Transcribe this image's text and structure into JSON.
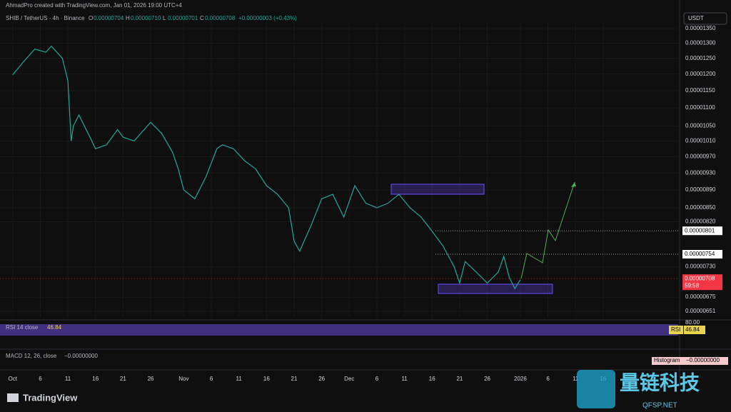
{
  "header": {
    "credit": "AhmadPro created with TradingView.com, Jan 01, 2026 19:00 UTC+4",
    "symbol": "SHIB / TetherUS · 4h · Binance",
    "ohlc": [
      {
        "key": "O",
        "value": "0.00000704"
      },
      {
        "key": "H",
        "value": "0.00000710"
      },
      {
        "key": "L",
        "value": "0.00000701"
      },
      {
        "key": "C",
        "value": "0.00000708"
      }
    ],
    "change": "+0.00000003 (+0.43%)",
    "currency": "USDT"
  },
  "chart_data": {
    "type": "line",
    "log_scale": true,
    "color": "#26a69a",
    "grid": true,
    "x": [
      0,
      2,
      4,
      6,
      7,
      9,
      10,
      10.6,
      11,
      12,
      14,
      15,
      17,
      19,
      20,
      22,
      25,
      27,
      29,
      30,
      31,
      33,
      35,
      37,
      38,
      40,
      42,
      44,
      46,
      48,
      50,
      51,
      52,
      54,
      56,
      58,
      60,
      62,
      64,
      66,
      68,
      70,
      72,
      74,
      76,
      78,
      80,
      81,
      82,
      84,
      86,
      88,
      89,
      90,
      91,
      92
    ],
    "values": [
      1.198e-05,
      1.24e-05,
      1.28e-05,
      1.27e-05,
      1.29e-05,
      1.25e-05,
      1.18e-05,
      1.01e-05,
      1.05e-05,
      1.08e-05,
      1.02e-05,
      9.9e-06,
      1e-05,
      1.04e-05,
      1.02e-05,
      1.01e-05,
      1.06e-05,
      1.03e-05,
      9.8e-06,
      9.4e-06,
      8.9e-06,
      8.7e-06,
      9.2e-06,
      9.9e-06,
      1e-05,
      9.9e-06,
      9.6e-06,
      9.4e-06,
      9e-06,
      8.8e-06,
      8.5e-06,
      7.8e-06,
      7.6e-06,
      8.1e-06,
      8.7e-06,
      8.8e-06,
      8.3e-06,
      9e-06,
      8.6e-06,
      8.5e-06,
      8.6e-06,
      8.8e-06,
      8.5e-06,
      8.3e-06,
      8e-06,
      7.7e-06,
      7.3e-06,
      7e-06,
      7.4e-06,
      7.2e-06,
      7e-06,
      7.2e-06,
      7.5e-06,
      7.1e-06,
      6.9e-06,
      7.06e-06
    ],
    "ylim": [
      6.4e-06,
      1.375e-05
    ],
    "xlim": [
      -2.3,
      120.6
    ],
    "yticks": [
      {
        "value": 1.35e-05,
        "label": "0.00001350"
      },
      {
        "value": 1.3e-05,
        "label": "0.00001300"
      },
      {
        "value": 1.25e-05,
        "label": "0.00001250"
      },
      {
        "value": 1.2e-05,
        "label": "0.00001200"
      },
      {
        "value": 1.15e-05,
        "label": "0.00001150"
      },
      {
        "value": 1.1e-05,
        "label": "0.00001100"
      },
      {
        "value": 1.05e-05,
        "label": "0.00001050"
      },
      {
        "value": 1.01e-05,
        "label": "0.00001010"
      },
      {
        "value": 9.7e-06,
        "label": "0.00000970"
      },
      {
        "value": 9.3e-06,
        "label": "0.00000930"
      },
      {
        "value": 8.9e-06,
        "label": "0.00000890"
      },
      {
        "value": 8.5e-06,
        "label": "0.00000850"
      },
      {
        "value": 8.2e-06,
        "label": "0.00000820"
      },
      {
        "value": 7.3e-06,
        "label": "0.00000730"
      },
      {
        "value": 6.75e-06,
        "label": "0.00000675"
      },
      {
        "value": 6.51e-06,
        "label": "0.00000651"
      }
    ],
    "xticks": [
      {
        "value": 0,
        "label": "Oct"
      },
      {
        "value": 5,
        "label": "6"
      },
      {
        "value": 10,
        "label": "11"
      },
      {
        "value": 15,
        "label": "16"
      },
      {
        "value": 20,
        "label": "21"
      },
      {
        "value": 25,
        "label": "26"
      },
      {
        "value": 31,
        "label": "Nov"
      },
      {
        "value": 36,
        "label": "6"
      },
      {
        "value": 41,
        "label": "11"
      },
      {
        "value": 46,
        "label": "16"
      },
      {
        "value": 51,
        "label": "21"
      },
      {
        "value": 56,
        "label": "26"
      },
      {
        "value": 61,
        "label": "Dec"
      },
      {
        "value": 66,
        "label": "6"
      },
      {
        "value": 71,
        "label": "11"
      },
      {
        "value": 76,
        "label": "16"
      },
      {
        "value": 81,
        "label": "21"
      },
      {
        "value": 86,
        "label": "26"
      },
      {
        "value": 92,
        "label": "2026"
      },
      {
        "value": 97,
        "label": "6"
      },
      {
        "value": 102,
        "label": "11"
      },
      {
        "value": 107,
        "label": "16"
      }
    ],
    "price_labels": [
      {
        "value": 8.01e-06,
        "label": "0.00000801"
      },
      {
        "value": 7.54e-06,
        "label": "0.00000754"
      }
    ],
    "last_price": {
      "value": 7.08e-06,
      "label": "0.00000708",
      "countdown": "59:58"
    }
  },
  "rsi": {
    "title": "RSI 14 close",
    "value": "46.84",
    "level": "80.00",
    "tag": "RSI"
  },
  "macd": {
    "title": "MACD 12, 26, close",
    "value": "−0.00000000",
    "tag": "Histogram",
    "tag_value": "−0.00000000"
  },
  "footer": {
    "logo": "TradingView",
    "watermark": "量链科技",
    "watermark_sub": "QFSP.NET"
  }
}
